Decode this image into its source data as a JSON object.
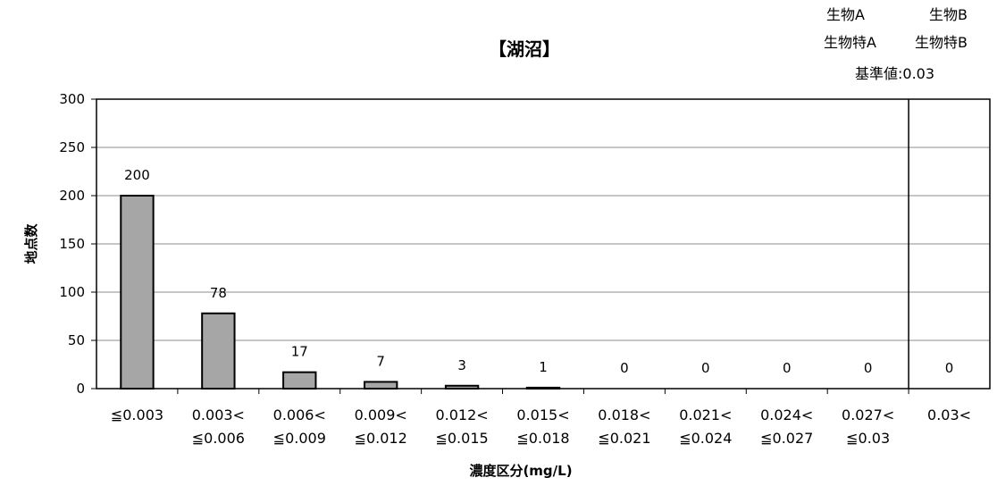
{
  "chart_data": {
    "type": "bar",
    "title": "【湖沼】",
    "xlabel": "濃度区分(mg/L)",
    "ylabel": "地点数",
    "ylim": [
      0,
      300
    ],
    "yticks": [
      0,
      50,
      100,
      150,
      200,
      250,
      300
    ],
    "grid": true,
    "categories": [
      [
        "≦0.003"
      ],
      [
        "0.003<",
        "≦0.006"
      ],
      [
        "0.006<",
        "≦0.009"
      ],
      [
        "0.009<",
        "≦0.012"
      ],
      [
        "0.012<",
        "≦0.015"
      ],
      [
        "0.015<",
        "≦0.018"
      ],
      [
        "0.018<",
        "≦0.021"
      ],
      [
        "0.021<",
        "≦0.024"
      ],
      [
        "0.024<",
        "≦0.027"
      ],
      [
        "0.027<",
        "≦0.03"
      ],
      [
        "0.03<"
      ]
    ],
    "values": [
      200,
      78,
      17,
      7,
      3,
      1,
      0,
      0,
      0,
      0,
      0
    ],
    "bar_color": "#a6a6a6",
    "annotation": {
      "lines": [
        [
          "生物A",
          "生物B"
        ],
        [
          "生物特A",
          "生物特B"
        ],
        [
          "基準値:0.03"
        ]
      ]
    }
  }
}
